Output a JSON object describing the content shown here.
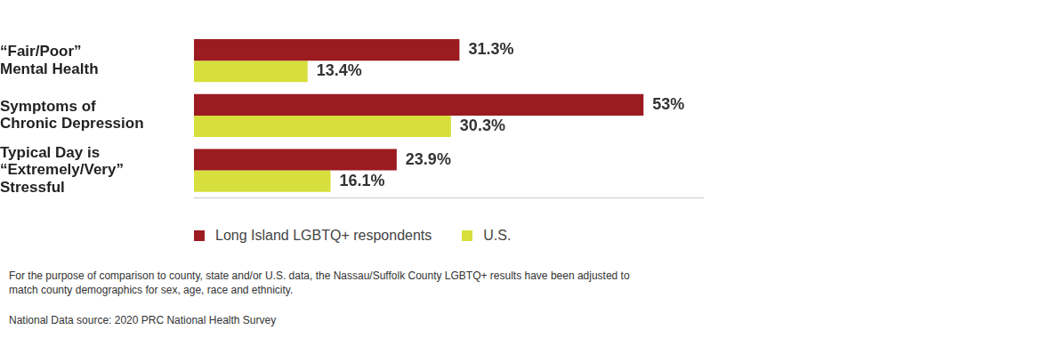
{
  "chart_data": {
    "type": "bar",
    "orientation": "horizontal",
    "categories": [
      [
        "“Fair/Poor”",
        "Mental Health"
      ],
      [
        "Symptoms of",
        "Chronic Depression"
      ],
      [
        "Typical Day is",
        "“Extremely/Very”",
        "Stressful"
      ]
    ],
    "series": [
      {
        "name": "Long Island LGBTQ+ respondents",
        "color": "#9b1b20",
        "values": [
          31.3,
          53,
          23.9
        ],
        "value_labels": [
          "31.3%",
          "53%",
          "23.9%"
        ]
      },
      {
        "name": "U.S.",
        "color": "#d7df3d",
        "values": [
          13.4,
          30.3,
          16.1
        ],
        "value_labels": [
          "13.4%",
          "30.3%",
          "16.1%"
        ]
      }
    ],
    "xlim": [
      0,
      60
    ],
    "grid": false,
    "tick_labels": "y",
    "data_labels": true,
    "legend": "bottom",
    "annotations": [
      "For the purpose of comparison to county, state and/or U.S. data, the Nassau/Suffolk County LGBTQ+ results have been adjusted to match county demographics for sex, age, race and ethnicity.",
      "National Data source: 2020 PRC National Health Survey"
    ]
  }
}
